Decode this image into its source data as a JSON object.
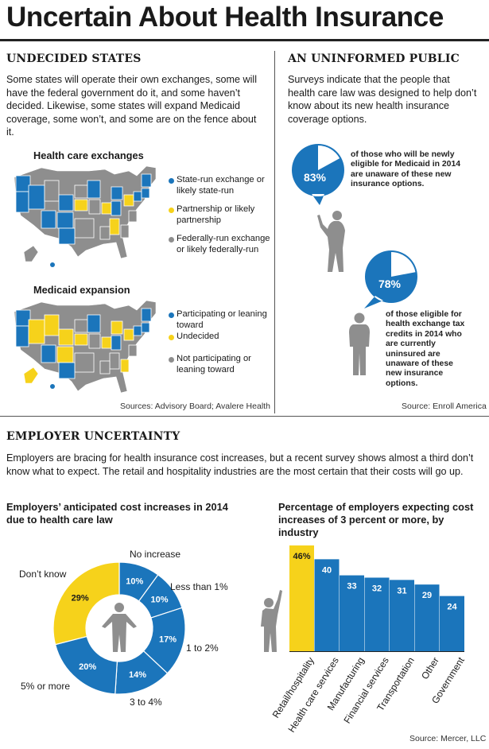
{
  "title": "Uncertain About Health Insurance",
  "colors": {
    "blue": "#1b75bb",
    "yellow": "#f6d21b",
    "gray": "#8e8e8e",
    "dark": "#1a1a1a"
  },
  "undecided": {
    "heading": "UNDECIDED STATES",
    "text": "Some states will operate their own exchanges, some will have the federal government do it, and some haven’t decided. Likewise, some states will expand Medicaid coverage, some won’t, and some are on the fence about it.",
    "map1": {
      "title": "Health care exchanges",
      "legend": [
        {
          "color": "blue",
          "label": "State-run exchange or likely state-run"
        },
        {
          "color": "yellow",
          "label": "Partnership or likely partnership"
        },
        {
          "color": "gray",
          "label": "Federally-run exchange or likely federally-run"
        }
      ]
    },
    "map2": {
      "title": "Medicaid expansion",
      "legend": [
        {
          "color": "blue",
          "label": "Participating or leaning toward"
        },
        {
          "color": "yellow",
          "label": "Undecided"
        },
        {
          "color": "gray",
          "label": "Not participating or leaning toward"
        }
      ]
    },
    "source": "Sources: Advisory Board; Avalere Health"
  },
  "uninformed": {
    "heading": "AN UNINFORMED PUBLIC",
    "text": "Surveys indicate that the people that health care law was designed to help don’t know about its new health insurance coverage options.",
    "stat1": {
      "value": "83%",
      "fraction": 0.83,
      "text": "of those who will be newly eligible for Medicaid in 2014 are unaware of these new insurance options."
    },
    "stat2": {
      "value": "78%",
      "fraction": 0.78,
      "text": "of those eligible for health exchange tax credits in 2014 who are currently uninsured are unaware of these new insurance options."
    },
    "source": "Source: Enroll America"
  },
  "employer": {
    "heading": "EMPLOYER UNCERTAINTY",
    "text": "Employers are bracing for health insurance cost increases, but a recent survey shows almost a third don’t know what to expect. The retail and hospitality industries are the most certain that their costs will go up.",
    "source": "Source: Mercer, LLC"
  },
  "chart_data": [
    {
      "type": "pie",
      "title": "Employers’ anticipated cost increases in 2014 due to health care law",
      "slices": [
        {
          "label": "No increase",
          "value": 10,
          "display": "10%",
          "color": "blue"
        },
        {
          "label": "Less than 1%",
          "value": 10,
          "display": "10%",
          "color": "blue"
        },
        {
          "label": "1 to 2%",
          "value": 17,
          "display": "17%",
          "color": "blue"
        },
        {
          "label": "3 to 4%",
          "value": 14,
          "display": "14%",
          "color": "blue"
        },
        {
          "label": "5% or more",
          "value": 20,
          "display": "20%",
          "color": "blue"
        },
        {
          "label": "Don’t know",
          "value": 29,
          "display": "29%",
          "color": "yellow"
        }
      ]
    },
    {
      "type": "bar",
      "title": "Percentage of employers expecting cost increases of 3 percent or more, by industry",
      "categories": [
        "Retail/hospitality",
        "Health care services",
        "Manufacturing",
        "Financial services",
        "Transportation",
        "Other",
        "Government"
      ],
      "values": [
        46,
        40,
        33,
        32,
        31,
        29,
        24
      ],
      "labels": [
        "46%",
        "40",
        "33",
        "32",
        "31",
        "29",
        "24"
      ],
      "highlight": 0,
      "ylim": [
        0,
        46
      ]
    }
  ]
}
